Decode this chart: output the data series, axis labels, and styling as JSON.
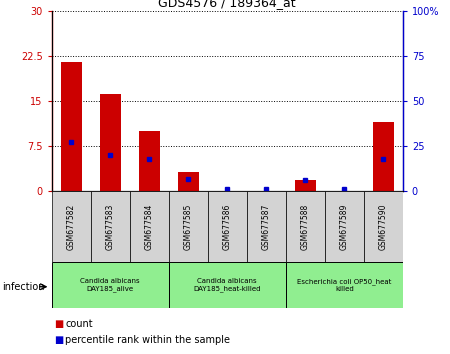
{
  "title": "GDS4576 / 189364_at",
  "samples": [
    "GSM677582",
    "GSM677583",
    "GSM677584",
    "GSM677585",
    "GSM677586",
    "GSM677587",
    "GSM677588",
    "GSM677589",
    "GSM677590"
  ],
  "counts": [
    21.5,
    16.2,
    10.0,
    3.2,
    0,
    0,
    1.8,
    0,
    11.5
  ],
  "percentile_ranks": [
    27,
    20,
    18,
    7,
    1,
    1,
    6,
    1,
    18
  ],
  "ylim_left": [
    0,
    30
  ],
  "ylim_right": [
    0,
    100
  ],
  "yticks_left": [
    0,
    7.5,
    15,
    22.5,
    30
  ],
  "yticks_right": [
    0,
    25,
    50,
    75,
    100
  ],
  "ytick_labels_left": [
    "0",
    "7.5",
    "15",
    "22.5",
    "30"
  ],
  "ytick_labels_right": [
    "0",
    "25",
    "50",
    "75",
    "100%"
  ],
  "bar_color": "#cc0000",
  "marker_color": "#0000cc",
  "groups": [
    {
      "label": "Candida albicans\nDAY185_alive",
      "start": 0,
      "end": 3,
      "color": "#90ee90"
    },
    {
      "label": "Candida albicans\nDAY185_heat-killed",
      "start": 3,
      "end": 6,
      "color": "#90ee90"
    },
    {
      "label": "Escherichia coli OP50_heat\nkilled",
      "start": 6,
      "end": 9,
      "color": "#90ee90"
    }
  ],
  "infection_label": "infection",
  "legend_count_label": "count",
  "legend_pct_label": "percentile rank within the sample",
  "bg_color": "#ffffff",
  "tick_bg_color": "#d3d3d3",
  "left_axis_color": "#cc0000",
  "right_axis_color": "#0000cc"
}
